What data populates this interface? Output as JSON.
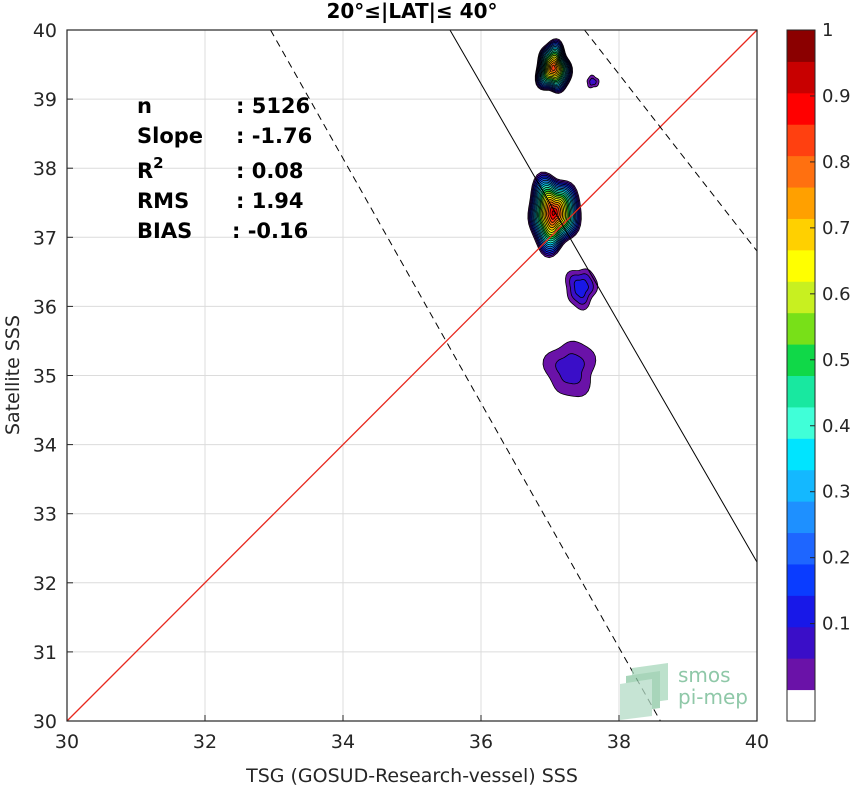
{
  "chart_data": {
    "type": "scatter",
    "title": "20°≤|LAT|≤ 40°",
    "xlabel": "TSG (GOSUD-Research-vessel) SSS",
    "ylabel": "Satellite SSS",
    "xlim": [
      30,
      40
    ],
    "ylim": [
      30,
      40
    ],
    "xticks": [
      30,
      32,
      34,
      36,
      38,
      40
    ],
    "yticks": [
      30,
      31,
      32,
      33,
      34,
      35,
      36,
      37,
      38,
      39,
      40
    ],
    "grid": true,
    "stats": {
      "n_label": "n",
      "n_value": ": 5126",
      "slope_label": "Slope",
      "slope_value": ": -1.76",
      "r2_label": "R",
      "r2_sup": "2",
      "r2_value": ": 0.08",
      "rms_label": "RMS",
      "rms_value": ": 1.94",
      "bias_label": "BIAS",
      "bias_value": ": -0.16"
    },
    "lines": [
      {
        "role": "one-to-one",
        "color": "#e8281e",
        "style": "solid",
        "x": [
          30,
          40
        ],
        "y": [
          30,
          40
        ]
      },
      {
        "role": "fit",
        "color": "#000000",
        "style": "solid",
        "x": [
          35.55,
          40
        ],
        "y": [
          40,
          32.3
        ]
      },
      {
        "role": "fit-upper",
        "color": "#000000",
        "style": "dashed",
        "x": [
          37.5,
          40
        ],
        "y": [
          40,
          36.8
        ]
      },
      {
        "role": "fit-lower",
        "color": "#000000",
        "style": "dashed",
        "x": [
          32.95,
          38.6
        ],
        "y": [
          40,
          30
        ]
      }
    ],
    "density_contours": [
      {
        "cx": 37.05,
        "cy": 39.45,
        "rx": 0.27,
        "ry": 0.4,
        "peak": 0.92
      },
      {
        "cx": 37.62,
        "cy": 39.25,
        "rx": 0.12,
        "ry": 0.12,
        "peak": 0.12
      },
      {
        "cx": 37.05,
        "cy": 37.35,
        "rx": 0.4,
        "ry": 0.6,
        "peak": 1.0
      },
      {
        "cx": 37.45,
        "cy": 36.27,
        "rx": 0.28,
        "ry": 0.36,
        "peak": 0.18
      },
      {
        "cx": 37.3,
        "cy": 35.1,
        "rx": 0.5,
        "ry": 0.55,
        "peak": 0.12
      }
    ],
    "colorbar": {
      "ticks": [
        "0.1",
        "0.2",
        "0.3",
        "0.4",
        "0.5",
        "0.6",
        "0.7",
        "0.8",
        "0.9",
        "1"
      ],
      "levels": [
        0.05,
        0.1,
        0.15,
        0.2,
        0.25,
        0.3,
        0.35,
        0.4,
        0.45,
        0.5,
        0.55,
        0.6,
        0.65,
        0.7,
        0.75,
        0.8,
        0.85,
        0.9,
        0.95,
        1.0
      ],
      "colors": [
        "#ffffff",
        "#6a12a8",
        "#3a0ec8",
        "#1818e8",
        "#0a3cff",
        "#1e66ff",
        "#1e90ff",
        "#14b8ff",
        "#00e4ff",
        "#40ffd8",
        "#18e8a0",
        "#10d848",
        "#78e018",
        "#c8f020",
        "#ffff00",
        "#ffd000",
        "#ffa000",
        "#ff7010",
        "#ff4010",
        "#ff0000",
        "#c80000",
        "#8b0000"
      ]
    }
  },
  "logo": {
    "line1": "smos",
    "line2": "pi-mep"
  }
}
